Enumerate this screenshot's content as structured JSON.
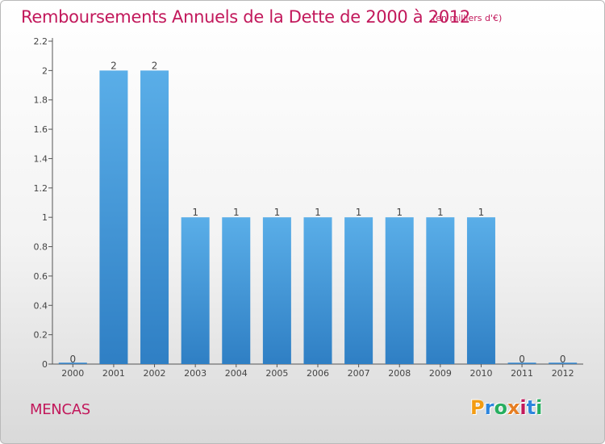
{
  "title": "Remboursements Annuels de la Dette de 2000 à 2012",
  "subtitle": "(en milliers d'€)",
  "town": "MENCAS",
  "logo": {
    "letters": [
      "P",
      "r",
      "o",
      "x",
      "i",
      "t",
      "i"
    ],
    "colors": [
      "#f39c12",
      "#2e86de",
      "#27ae60",
      "#e67e22",
      "#c2185b",
      "#2e86de",
      "#27ae60"
    ]
  },
  "colors": {
    "bar": "#3a8fd9",
    "bar_light": "#5aaee8",
    "accent": "#c2185b",
    "axis": "#555555",
    "grid": "#cccccc"
  },
  "chart_data": {
    "type": "bar",
    "categories": [
      "2000",
      "2001",
      "2002",
      "2003",
      "2004",
      "2005",
      "2006",
      "2007",
      "2008",
      "2009",
      "2010",
      "2011",
      "2012"
    ],
    "values": [
      0,
      2,
      2,
      1,
      1,
      1,
      1,
      1,
      1,
      1,
      1,
      0,
      0
    ],
    "value_labels": [
      "0",
      "2",
      "2",
      "1",
      "1",
      "1",
      "1",
      "1",
      "1",
      "1",
      "1",
      "0",
      "0"
    ],
    "title": "Remboursements Annuels de la Dette de 2000 à 2012",
    "subtitle": "(en milliers d'€)",
    "xlabel": "",
    "ylabel": "",
    "ylim": [
      0,
      2.2
    ],
    "yticks": [
      0,
      0.2,
      0.4,
      0.6,
      0.8,
      1,
      1.2,
      1.4,
      1.6,
      1.8,
      2,
      2.2
    ],
    "ytick_labels": [
      "0",
      "0.2",
      "0.4",
      "0.6",
      "0.8",
      "1",
      "1.2",
      "1.4",
      "1.6",
      "1.8",
      "2",
      "2.2"
    ],
    "grid": false,
    "legend": "none"
  }
}
